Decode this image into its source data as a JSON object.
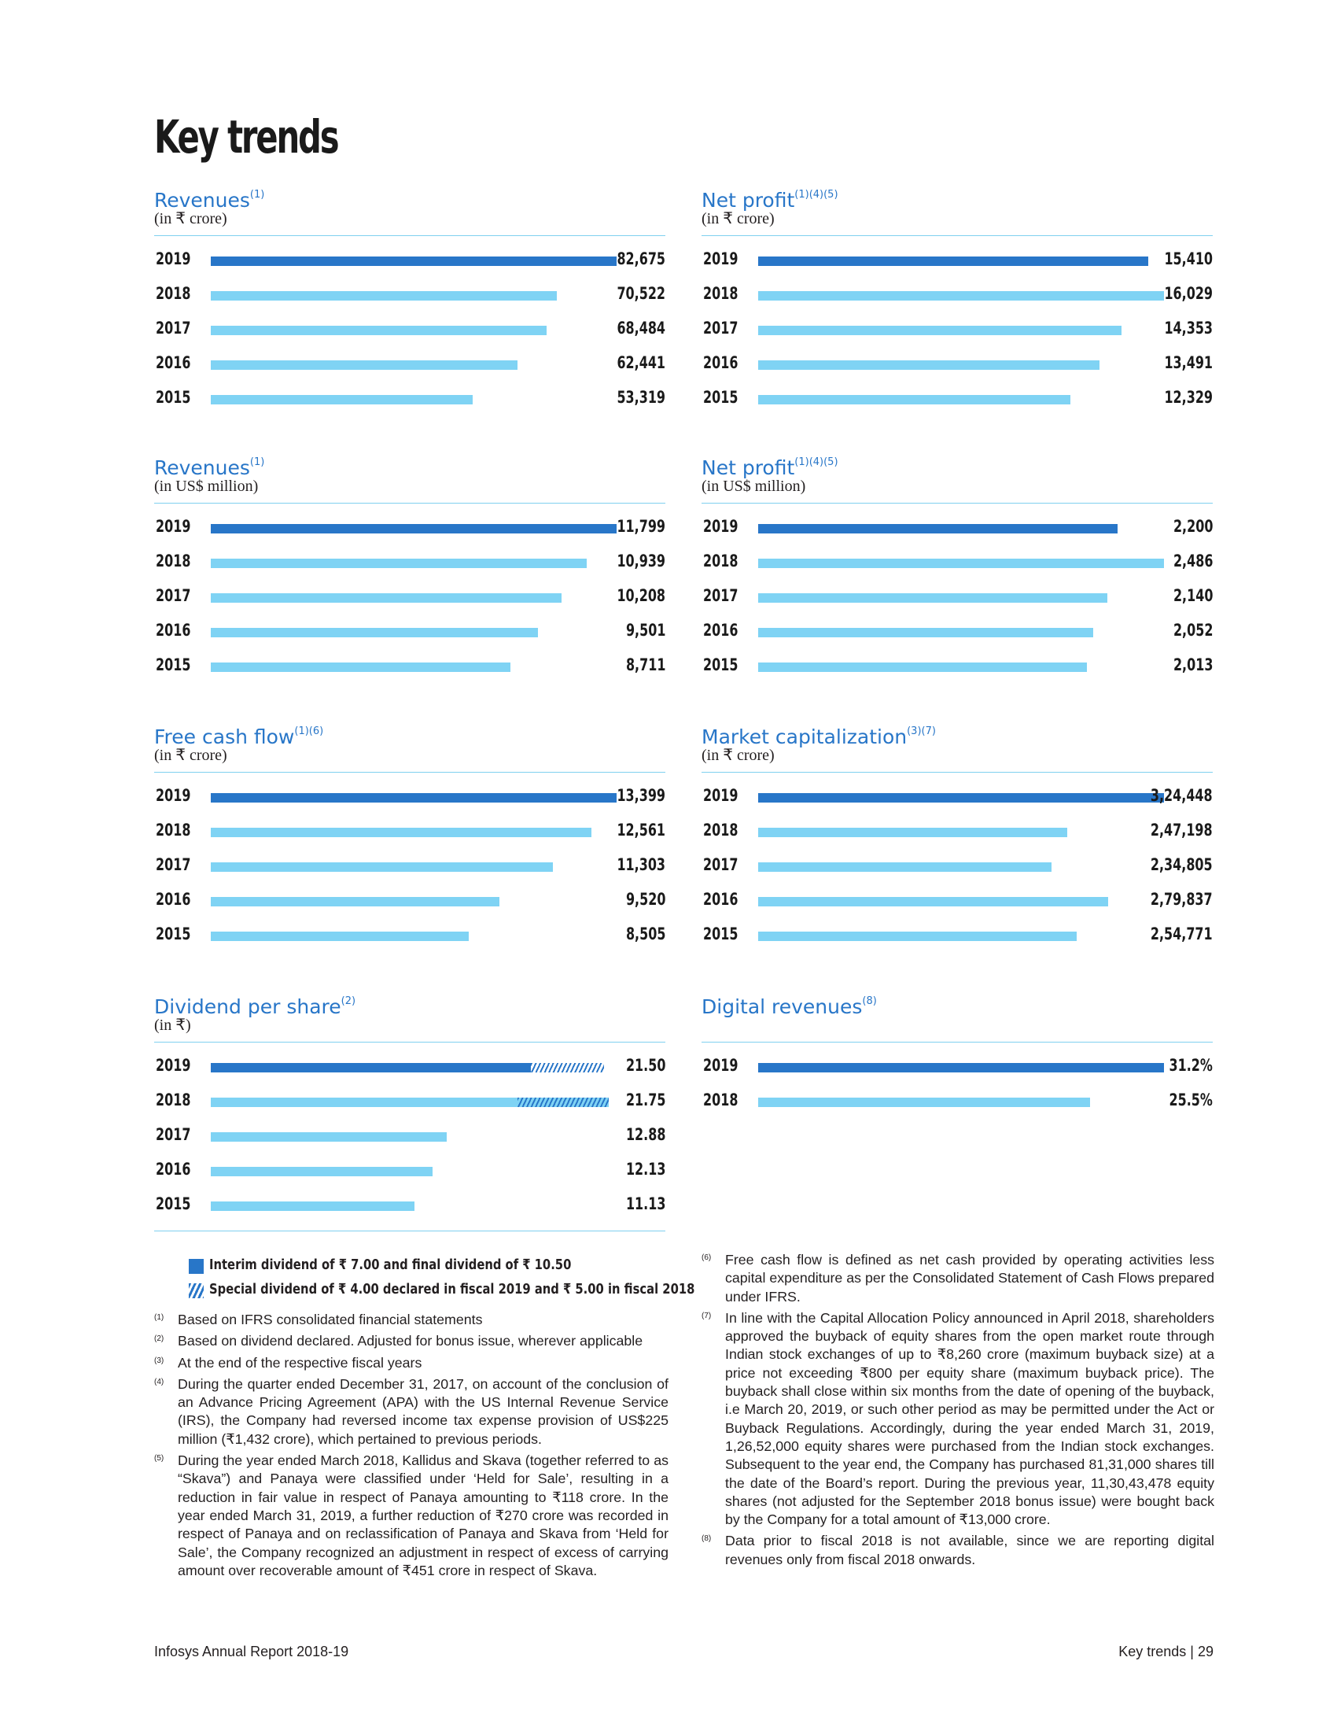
{
  "page": {
    "title": "Key trends",
    "footer_left": "Infosys Annual Report 2018-19",
    "footer_right": "Key trends | 29"
  },
  "colors": {
    "accent": "#2876c8",
    "bar_prior": "#7fd3f4",
    "rule": "#7fd0ef"
  },
  "chart_data": [
    {
      "type": "bar",
      "title": "Revenues",
      "superscript": "(1)",
      "unit": "(in ₹ crore)",
      "categories": [
        "2019",
        "2018",
        "2017",
        "2016",
        "2015"
      ],
      "values": [
        82675,
        70522,
        68484,
        62441,
        53319
      ],
      "labels": [
        "82,675",
        "70,522",
        "68,484",
        "62,441",
        "53,319"
      ]
    },
    {
      "type": "bar",
      "title": "Net profit",
      "superscript": "(1)(4)(5)",
      "unit": "(in ₹ crore)",
      "categories": [
        "2019",
        "2018",
        "2017",
        "2016",
        "2015"
      ],
      "values": [
        15410,
        16029,
        14353,
        13491,
        12329
      ],
      "labels": [
        "15,410",
        "16,029",
        "14,353",
        "13,491",
        "12,329"
      ]
    },
    {
      "type": "bar",
      "title": "Revenues",
      "superscript": "(1)",
      "unit": "(in US$ million)",
      "categories": [
        "2019",
        "2018",
        "2017",
        "2016",
        "2015"
      ],
      "values": [
        11799,
        10939,
        10208,
        9501,
        8711
      ],
      "labels": [
        "11,799",
        "10,939",
        "10,208",
        "9,501",
        "8,711"
      ]
    },
    {
      "type": "bar",
      "title": "Net profit",
      "superscript": "(1)(4)(5)",
      "unit": "(in US$ million)",
      "categories": [
        "2019",
        "2018",
        "2017",
        "2016",
        "2015"
      ],
      "values": [
        2200,
        2486,
        2140,
        2052,
        2013
      ],
      "labels": [
        "2,200",
        "2,486",
        "2,140",
        "2,052",
        "2,013"
      ]
    },
    {
      "type": "bar",
      "title": "Free cash flow",
      "superscript": "(1)(6)",
      "unit": "(in ₹ crore)",
      "categories": [
        "2019",
        "2018",
        "2017",
        "2016",
        "2015"
      ],
      "values": [
        13399,
        12561,
        11303,
        9520,
        8505
      ],
      "labels": [
        "13,399",
        "12,561",
        "11,303",
        "9,520",
        "8,505"
      ]
    },
    {
      "type": "bar",
      "title": "Market capitalization",
      "superscript": "(3)(7)",
      "unit": "(in ₹ crore)",
      "categories": [
        "2019",
        "2018",
        "2017",
        "2016",
        "2015"
      ],
      "values": [
        324448,
        247198,
        234805,
        279837,
        254771
      ],
      "labels": [
        "3,24,448",
        "2,47,198",
        "2,34,805",
        "2,79,837",
        "2,54,771"
      ]
    },
    {
      "type": "bar",
      "title": "Dividend per share",
      "superscript": "(2)",
      "unit": "(in ₹)",
      "categories": [
        "2019",
        "2018",
        "2017",
        "2016",
        "2015"
      ],
      "values": [
        21.5,
        21.75,
        12.88,
        12.13,
        11.13
      ],
      "special": [
        4.0,
        5.0,
        0,
        0,
        0
      ],
      "labels": [
        "21.50",
        "21.75",
        "12.88",
        "12.13",
        "11.13"
      ]
    },
    {
      "type": "bar",
      "title": "Digital revenues",
      "superscript": "(8)",
      "unit": "",
      "categories": [
        "2019",
        "2018"
      ],
      "values": [
        31.2,
        25.5
      ],
      "labels": [
        "31.2%",
        "25.5%"
      ]
    }
  ],
  "legend": [
    {
      "text": "Interim dividend of ₹ 7.00 and final dividend of ₹ 10.50",
      "style": "solid"
    },
    {
      "text": "Special dividend of ₹ 4.00 declared in fiscal 2019 and ₹ 5.00 in fiscal 2018",
      "style": "hatched"
    }
  ],
  "notes_left": [
    {
      "mark": "(1)",
      "text": "Based on IFRS consolidated financial statements"
    },
    {
      "mark": "(2)",
      "text": "Based on dividend declared. Adjusted for bonus issue, wherever applicable"
    },
    {
      "mark": "(3)",
      "text": "At the end of the respective fiscal years"
    },
    {
      "mark": "(4)",
      "text": "During the quarter ended December 31, 2017, on account of the conclusion of an Advance Pricing Agreement (APA) with the US Internal Revenue Service (IRS), the Company had reversed income tax expense provision of US$225 million (₹1,432 crore), which pertained to previous periods."
    },
    {
      "mark": "(5)",
      "text": "During the year ended March 2018, Kallidus and Skava (together referred to as “Skava”) and Panaya were classified under ‘Held for Sale’, resulting in a reduction in fair value in respect of Panaya amounting to ₹118 crore. In the year ended March 31, 2019, a further reduction of ₹270 crore was recorded in respect of Panaya and on reclassification of Panaya and Skava from ‘Held for Sale’, the Company recognized an adjustment in respect of excess of carrying amount over recoverable amount of ₹451 crore in respect of Skava."
    }
  ],
  "notes_right": [
    {
      "mark": "(6)",
      "text": "Free cash flow is defined as net cash provided by operating activities less capital expenditure as per the Consolidated Statement of Cash Flows prepared under IFRS."
    },
    {
      "mark": "(7)",
      "text": "In line with the Capital Allocation Policy announced in April 2018, shareholders approved the buyback of equity shares from the open market route through Indian stock exchanges of up to ₹8,260 crore (maximum buyback size) at a price not exceeding ₹800 per equity share (maximum buyback price). The buyback shall close within six months from the date of opening of the buyback, i.e March 20, 2019, or such other period as may be permitted under the Act or Buyback Regulations. Accordingly, during the year ended March 31, 2019, 1,26,52,000 equity shares were purchased from the Indian stock exchanges. Subsequent to the year end, the Company has purchased 81,31,000 shares till the date of the Board’s report. During the previous year, 11,30,43,478 equity shares (not adjusted for the September 2018 bonus issue) were bought back by the Company for a total amount of ₹13,000 crore."
    },
    {
      "mark": "(8)",
      "text": "Data prior to fiscal 2018 is not available, since we are reporting digital revenues only from fiscal 2018 onwards."
    }
  ]
}
